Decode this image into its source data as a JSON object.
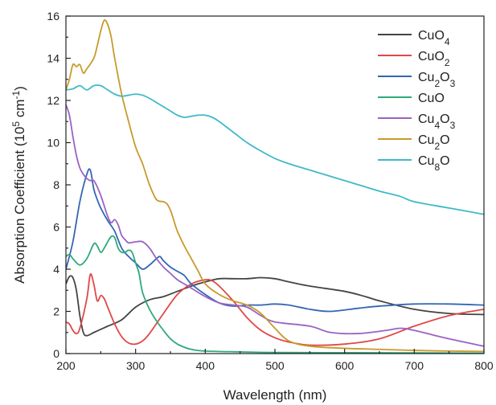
{
  "chart_data": {
    "type": "line",
    "title": "",
    "xlabel": "Wavelength (nm)",
    "ylabel": {
      "prefix": "Absorption Coefficient (10",
      "sup1": "5",
      "mid": " cm",
      "sup2": "-1",
      "suffix": ")"
    },
    "xlim": [
      200,
      800
    ],
    "ylim": [
      0,
      16
    ],
    "xticks": [
      200,
      300,
      400,
      500,
      600,
      700,
      800
    ],
    "yticks": [
      0,
      2,
      4,
      6,
      8,
      10,
      12,
      14,
      16
    ],
    "grid": false,
    "legend_position": "top-right",
    "series": [
      {
        "name": "CuO4",
        "label_parts": [
          [
            "Cu",
            false
          ],
          [
            "O",
            false
          ],
          [
            "4",
            true
          ]
        ],
        "color": "#444444",
        "x": [
          200,
          205,
          210,
          215,
          220,
          225,
          230,
          240,
          250,
          260,
          280,
          300,
          320,
          340,
          360,
          380,
          400,
          420,
          440,
          460,
          480,
          500,
          520,
          550,
          600,
          630,
          650,
          700,
          750,
          800
        ],
        "y": [
          3.3,
          3.65,
          3.6,
          3.0,
          1.8,
          1.0,
          0.85,
          1.0,
          1.15,
          1.3,
          1.6,
          2.2,
          2.55,
          2.7,
          2.95,
          3.2,
          3.4,
          3.55,
          3.55,
          3.55,
          3.6,
          3.55,
          3.4,
          3.2,
          2.95,
          2.7,
          2.5,
          2.1,
          1.9,
          1.85
        ]
      },
      {
        "name": "CuO2",
        "label_parts": [
          [
            "Cu",
            false
          ],
          [
            "O",
            false
          ],
          [
            "2",
            true
          ]
        ],
        "color": "#e04848",
        "x": [
          200,
          205,
          210,
          215,
          220,
          230,
          235,
          240,
          245,
          250,
          255,
          260,
          270,
          280,
          290,
          300,
          310,
          320,
          340,
          360,
          380,
          400,
          410,
          420,
          440,
          460,
          480,
          500,
          520,
          550,
          600,
          650,
          700,
          750,
          800
        ],
        "y": [
          1.5,
          1.4,
          1.1,
          0.95,
          1.2,
          2.6,
          3.75,
          3.3,
          2.5,
          2.75,
          2.6,
          2.2,
          1.4,
          0.8,
          0.5,
          0.45,
          0.6,
          0.95,
          1.9,
          2.8,
          3.3,
          3.5,
          3.45,
          3.2,
          2.5,
          1.7,
          1.1,
          0.75,
          0.55,
          0.4,
          0.45,
          0.7,
          1.3,
          1.8,
          2.1
        ]
      },
      {
        "name": "Cu2O3",
        "label_parts": [
          [
            "Cu",
            false
          ],
          [
            "2",
            true
          ],
          [
            "O",
            false
          ],
          [
            "3",
            true
          ]
        ],
        "color": "#3366b5",
        "x": [
          200,
          210,
          220,
          230,
          235,
          240,
          245,
          250,
          260,
          270,
          280,
          290,
          300,
          310,
          320,
          330,
          335,
          340,
          350,
          360,
          370,
          380,
          400,
          420,
          440,
          460,
          480,
          500,
          520,
          550,
          580,
          620,
          650,
          700,
          750,
          800
        ],
        "y": [
          4.0,
          5.3,
          7.2,
          8.5,
          8.7,
          7.8,
          7.3,
          6.9,
          6.3,
          5.8,
          5.0,
          4.6,
          4.3,
          4.0,
          4.2,
          4.5,
          4.6,
          4.4,
          4.1,
          3.9,
          3.7,
          3.3,
          2.8,
          2.4,
          2.25,
          2.3,
          2.3,
          2.35,
          2.3,
          2.1,
          2.0,
          2.15,
          2.25,
          2.35,
          2.35,
          2.3
        ]
      },
      {
        "name": "CuO",
        "label_parts": [
          [
            "Cu",
            false
          ],
          [
            "O",
            false
          ]
        ],
        "color": "#2eaa78",
        "x": [
          200,
          205,
          210,
          220,
          230,
          240,
          245,
          250,
          255,
          260,
          265,
          270,
          275,
          280,
          285,
          290,
          295,
          300,
          305,
          310,
          320,
          330,
          340,
          350,
          360,
          370,
          380,
          400,
          450,
          500,
          600,
          700,
          800
        ],
        "y": [
          4.6,
          4.7,
          4.5,
          4.2,
          4.5,
          5.2,
          5.1,
          4.8,
          5.0,
          5.3,
          5.55,
          5.5,
          5.0,
          4.8,
          4.8,
          4.9,
          4.8,
          4.3,
          3.8,
          2.9,
          2.1,
          1.55,
          1.1,
          0.7,
          0.45,
          0.3,
          0.2,
          0.12,
          0.08,
          0.05,
          0.04,
          0.03,
          0.02
        ]
      },
      {
        "name": "Cu4O3",
        "label_parts": [
          [
            "Cu",
            false
          ],
          [
            "4",
            true
          ],
          [
            "O",
            false
          ],
          [
            "3",
            true
          ]
        ],
        "color": "#9b62c3",
        "x": [
          200,
          205,
          210,
          215,
          220,
          225,
          230,
          235,
          240,
          245,
          250,
          255,
          260,
          265,
          270,
          275,
          280,
          285,
          290,
          300,
          310,
          320,
          330,
          340,
          350,
          360,
          370,
          380,
          400,
          420,
          440,
          460,
          480,
          500,
          550,
          580,
          620,
          660,
          680,
          700,
          750,
          800
        ],
        "y": [
          11.8,
          11.3,
          10.3,
          9.4,
          8.8,
          8.5,
          8.3,
          8.2,
          8.2,
          7.9,
          7.5,
          7.0,
          6.5,
          6.2,
          6.35,
          6.1,
          5.6,
          5.4,
          5.25,
          5.3,
          5.3,
          5.0,
          4.5,
          4.1,
          3.8,
          3.5,
          3.3,
          3.1,
          2.7,
          2.4,
          2.3,
          2.2,
          1.8,
          1.5,
          1.3,
          1.0,
          0.95,
          1.1,
          1.2,
          1.1,
          0.7,
          0.35
        ]
      },
      {
        "name": "Cu2O",
        "label_parts": [
          [
            "Cu",
            false
          ],
          [
            "2",
            true
          ],
          [
            "O",
            false
          ]
        ],
        "color": "#c79b2c",
        "x": [
          200,
          205,
          210,
          215,
          220,
          225,
          230,
          240,
          245,
          250,
          255,
          260,
          265,
          270,
          280,
          290,
          300,
          310,
          320,
          330,
          340,
          345,
          350,
          355,
          360,
          370,
          380,
          390,
          400,
          420,
          440,
          460,
          480,
          500,
          520,
          550,
          600,
          650,
          700,
          750,
          800
        ],
        "y": [
          12.5,
          13.0,
          13.7,
          13.6,
          13.7,
          13.3,
          13.5,
          14.0,
          14.6,
          15.3,
          15.8,
          15.6,
          15.0,
          14.0,
          12.3,
          11.0,
          9.8,
          9.0,
          8.0,
          7.3,
          7.2,
          7.1,
          6.8,
          6.3,
          5.8,
          5.1,
          4.5,
          3.9,
          3.3,
          2.8,
          2.5,
          2.3,
          1.9,
          1.2,
          0.6,
          0.35,
          0.25,
          0.2,
          0.15,
          0.12,
          0.1
        ]
      },
      {
        "name": "Cu8O",
        "label_parts": [
          [
            "Cu",
            false
          ],
          [
            "8",
            true
          ],
          [
            "O",
            false
          ]
        ],
        "color": "#3fbac8",
        "x": [
          200,
          210,
          220,
          230,
          240,
          250,
          260,
          270,
          280,
          290,
          300,
          310,
          320,
          330,
          340,
          350,
          360,
          370,
          380,
          390,
          400,
          410,
          420,
          440,
          460,
          480,
          500,
          520,
          550,
          580,
          600,
          620,
          650,
          680,
          700,
          750,
          800
        ],
        "y": [
          12.5,
          12.55,
          12.7,
          12.5,
          12.7,
          12.7,
          12.5,
          12.3,
          12.2,
          12.25,
          12.3,
          12.25,
          12.1,
          11.9,
          11.7,
          11.5,
          11.3,
          11.2,
          11.25,
          11.3,
          11.3,
          11.2,
          11.0,
          10.5,
          10.0,
          9.6,
          9.25,
          9.0,
          8.7,
          8.4,
          8.2,
          8.0,
          7.7,
          7.45,
          7.2,
          6.9,
          6.6
        ]
      }
    ]
  }
}
